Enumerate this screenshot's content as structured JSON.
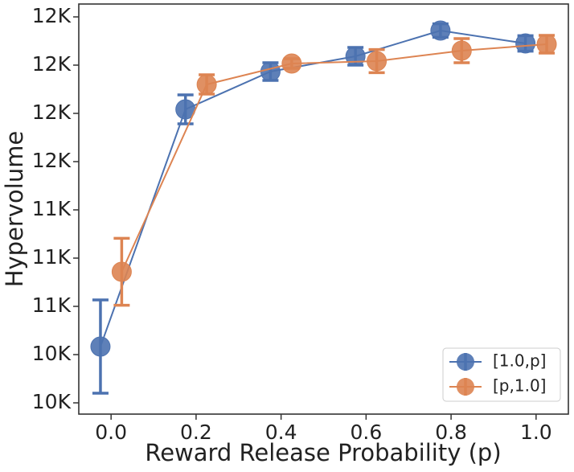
{
  "chart_data": {
    "type": "line",
    "x_label": "Reward Release Probability (p)",
    "y_label": "Hypervolume",
    "xlim": [
      -0.076,
      1.076
    ],
    "xticks": [
      {
        "value": 0,
        "label": "0.0"
      },
      {
        "value": 0.2,
        "label": "0.2"
      },
      {
        "value": 0.4,
        "label": "0.4"
      },
      {
        "value": 0.6,
        "label": "0.6"
      },
      {
        "value": 0.8,
        "label": "0.8"
      },
      {
        "value": 1,
        "label": "1.0"
      }
    ],
    "ylim": [
      9980,
      12530
    ],
    "yticks": [
      {
        "value": 10050,
        "label": "10K"
      },
      {
        "value": 10350,
        "label": "10K"
      },
      {
        "value": 10650,
        "label": "11K"
      },
      {
        "value": 10950,
        "label": "11K"
      },
      {
        "value": 11250,
        "label": "11K"
      },
      {
        "value": 11550,
        "label": "12K"
      },
      {
        "value": 11850,
        "label": "12K"
      },
      {
        "value": 12150,
        "label": "12K"
      },
      {
        "value": 12450,
        "label": "12K"
      }
    ],
    "legend": "lower right",
    "series": [
      {
        "name": "[1.0,p]",
        "color": "#4c72b0",
        "x": [
          -0.025,
          0.175,
          0.375,
          0.575,
          0.775,
          0.975
        ],
        "values": [
          10400,
          11875,
          12110,
          12205,
          12365,
          12285
        ],
        "errors": [
          290,
          90,
          55,
          55,
          42,
          48
        ]
      },
      {
        "name": "[p,1.0]",
        "color": "#dd8452",
        "x": [
          0.025,
          0.225,
          0.425,
          0.625,
          0.825,
          1.025
        ],
        "values": [
          10865,
          12030,
          12160,
          12175,
          12240,
          12280
        ],
        "errors": [
          208,
          60,
          30,
          72,
          75,
          55
        ]
      }
    ]
  }
}
